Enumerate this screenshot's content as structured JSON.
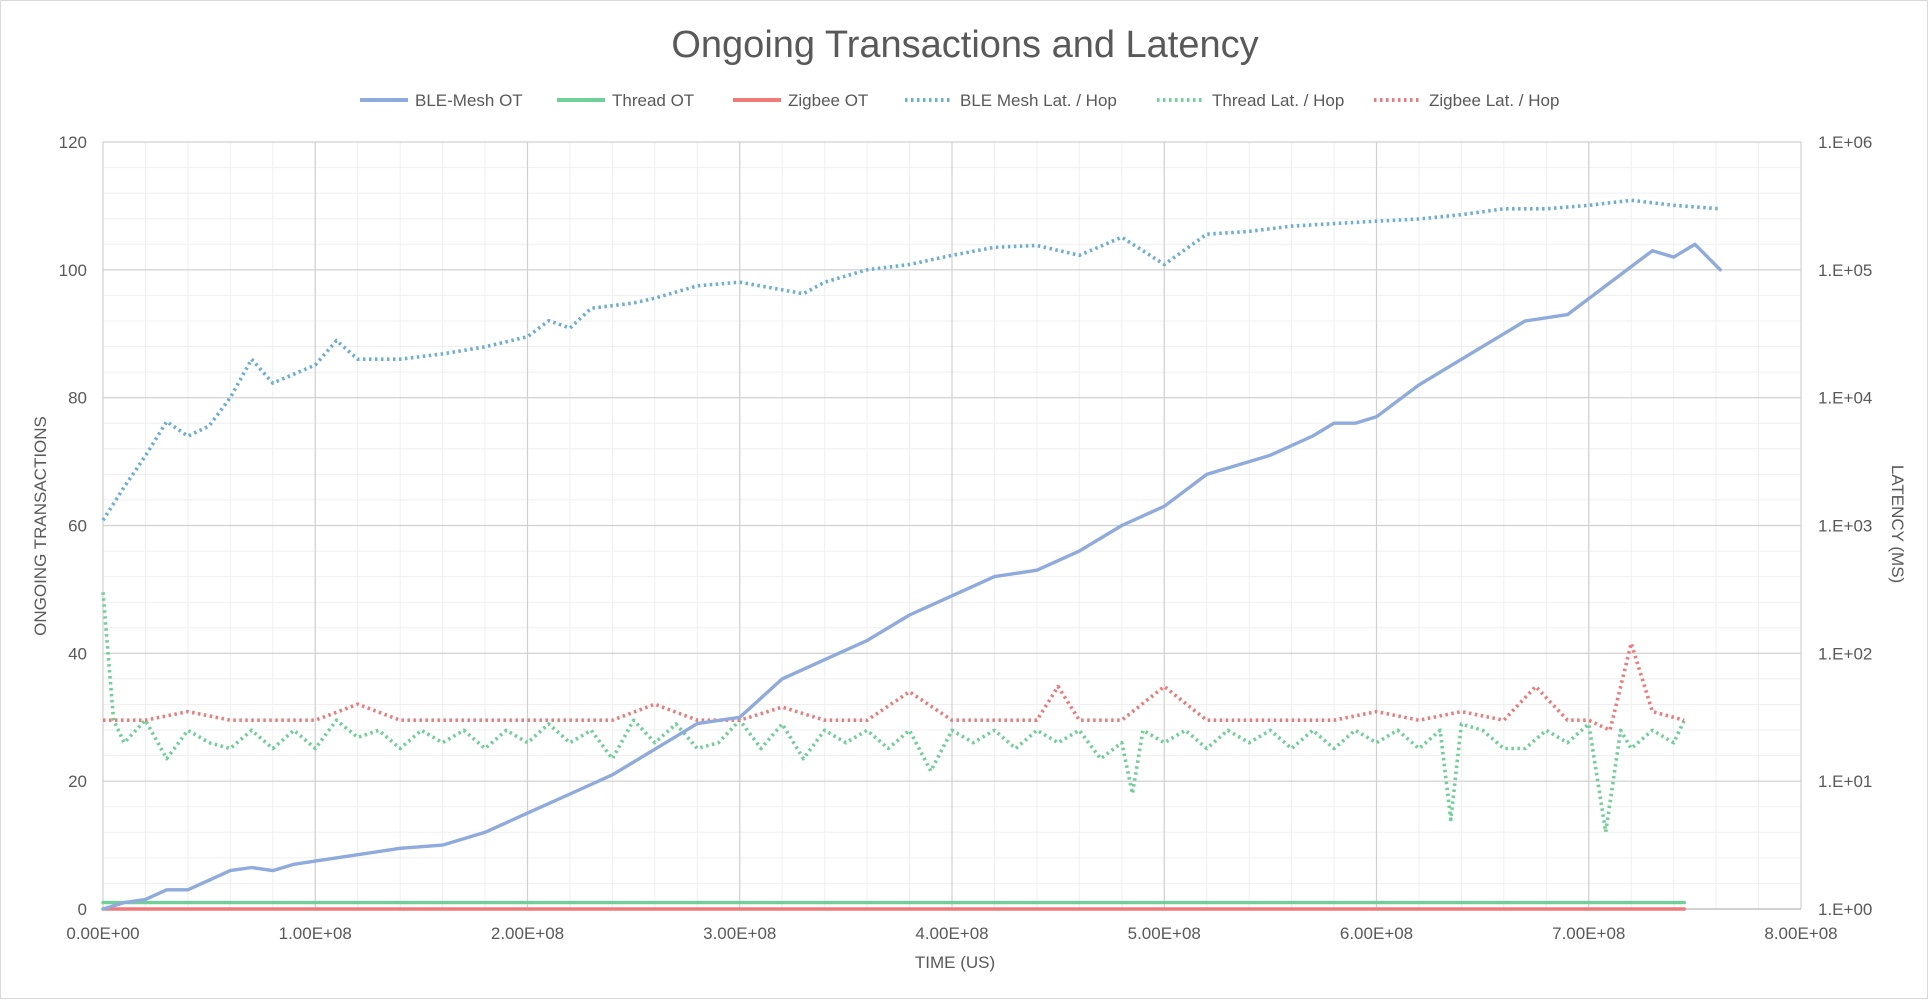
{
  "chart_data": {
    "type": "line",
    "title": "Ongoing Transactions and Latency",
    "xlabel": "TIME (US)",
    "ylabel": "ONGOING TRANSACTIONS",
    "y2label": "LATENCY (MS)",
    "xlim": [
      0,
      800000000
    ],
    "ylim": [
      0,
      120
    ],
    "y2lim": [
      1,
      1000000
    ],
    "y2scale": "log",
    "grid": true,
    "legend_position": "top",
    "x_ticks": [
      "0.00E+00",
      "1.00E+08",
      "2.00E+08",
      "3.00E+08",
      "4.00E+08",
      "5.00E+08",
      "6.00E+08",
      "7.00E+08",
      "8.00E+08"
    ],
    "y_ticks": [
      "0",
      "20",
      "40",
      "60",
      "80",
      "100",
      "120"
    ],
    "y2_ticks": [
      "1.E+00",
      "1.E+01",
      "1.E+02",
      "1.E+03",
      "1.E+04",
      "1.E+05",
      "1.E+06"
    ],
    "series": [
      {
        "name": "BLE-Mesh OT",
        "axis": "left",
        "style": "solid",
        "color": "#8faadc",
        "points": [
          [
            0,
            0
          ],
          [
            10000000,
            1
          ],
          [
            20000000,
            1.5
          ],
          [
            30000000,
            3
          ],
          [
            40000000,
            3
          ],
          [
            50000000,
            4.5
          ],
          [
            60000000,
            6
          ],
          [
            70000000,
            6.5
          ],
          [
            80000000,
            6
          ],
          [
            90000000,
            7
          ],
          [
            100000000,
            7.5
          ],
          [
            120000000,
            8.5
          ],
          [
            140000000,
            9.5
          ],
          [
            160000000,
            10
          ],
          [
            180000000,
            12
          ],
          [
            200000000,
            15
          ],
          [
            220000000,
            18
          ],
          [
            240000000,
            21
          ],
          [
            260000000,
            25
          ],
          [
            270000000,
            27
          ],
          [
            280000000,
            29
          ],
          [
            300000000,
            30
          ],
          [
            320000000,
            36
          ],
          [
            340000000,
            39
          ],
          [
            360000000,
            42
          ],
          [
            380000000,
            46
          ],
          [
            400000000,
            49
          ],
          [
            420000000,
            52
          ],
          [
            440000000,
            53
          ],
          [
            460000000,
            56
          ],
          [
            480000000,
            60
          ],
          [
            500000000,
            63
          ],
          [
            520000000,
            68
          ],
          [
            540000000,
            70
          ],
          [
            550000000,
            71
          ],
          [
            570000000,
            74
          ],
          [
            580000000,
            76
          ],
          [
            590000000,
            76
          ],
          [
            600000000,
            77
          ],
          [
            620000000,
            82
          ],
          [
            640000000,
            86
          ],
          [
            660000000,
            90
          ],
          [
            670000000,
            92
          ],
          [
            690000000,
            93
          ],
          [
            710000000,
            98
          ],
          [
            730000000,
            103
          ],
          [
            740000000,
            102
          ],
          [
            750000000,
            104
          ],
          [
            762000000,
            100
          ]
        ]
      },
      {
        "name": "Thread OT",
        "axis": "left",
        "style": "solid",
        "color": "#6fd098",
        "points": [
          [
            0,
            1
          ],
          [
            745000000,
            1
          ]
        ]
      },
      {
        "name": "Zigbee OT",
        "axis": "left",
        "style": "solid",
        "color": "#f07a7a",
        "points": [
          [
            0,
            0
          ],
          [
            745000000,
            0
          ]
        ]
      },
      {
        "name": "BLE Mesh Lat. / Hop",
        "axis": "right",
        "style": "dotted",
        "color": "#6baed6",
        "points": [
          [
            0,
            1100
          ],
          [
            10000000,
            2000
          ],
          [
            20000000,
            3500
          ],
          [
            30000000,
            6500
          ],
          [
            40000000,
            5000
          ],
          [
            50000000,
            6000
          ],
          [
            60000000,
            10000
          ],
          [
            70000000,
            20000
          ],
          [
            80000000,
            13000
          ],
          [
            100000000,
            18000
          ],
          [
            110000000,
            28000
          ],
          [
            120000000,
            20000
          ],
          [
            140000000,
            20000
          ],
          [
            160000000,
            22000
          ],
          [
            180000000,
            25000
          ],
          [
            200000000,
            30000
          ],
          [
            210000000,
            40000
          ],
          [
            220000000,
            35000
          ],
          [
            230000000,
            50000
          ],
          [
            250000000,
            55000
          ],
          [
            260000000,
            60000
          ],
          [
            280000000,
            75000
          ],
          [
            300000000,
            80000
          ],
          [
            330000000,
            65000
          ],
          [
            340000000,
            80000
          ],
          [
            360000000,
            100000
          ],
          [
            380000000,
            110000
          ],
          [
            400000000,
            130000
          ],
          [
            420000000,
            150000
          ],
          [
            440000000,
            155000
          ],
          [
            460000000,
            130000
          ],
          [
            480000000,
            180000
          ],
          [
            500000000,
            110000
          ],
          [
            520000000,
            190000
          ],
          [
            540000000,
            200000
          ],
          [
            560000000,
            220000
          ],
          [
            580000000,
            230000
          ],
          [
            600000000,
            240000
          ],
          [
            620000000,
            250000
          ],
          [
            640000000,
            270000
          ],
          [
            660000000,
            300000
          ],
          [
            680000000,
            300000
          ],
          [
            700000000,
            320000
          ],
          [
            720000000,
            350000
          ],
          [
            740000000,
            320000
          ],
          [
            762000000,
            300000
          ]
        ]
      },
      {
        "name": "Thread Lat. / Hop",
        "axis": "right",
        "style": "dotted",
        "color": "#6fd098",
        "points": [
          [
            0,
            300
          ],
          [
            5000000,
            30
          ],
          [
            10000000,
            20
          ],
          [
            20000000,
            30
          ],
          [
            30000000,
            15
          ],
          [
            40000000,
            25
          ],
          [
            50000000,
            20
          ],
          [
            60000000,
            18
          ],
          [
            70000000,
            25
          ],
          [
            80000000,
            18
          ],
          [
            90000000,
            25
          ],
          [
            100000000,
            18
          ],
          [
            110000000,
            30
          ],
          [
            120000000,
            22
          ],
          [
            130000000,
            25
          ],
          [
            140000000,
            18
          ],
          [
            150000000,
            25
          ],
          [
            160000000,
            20
          ],
          [
            170000000,
            25
          ],
          [
            180000000,
            18
          ],
          [
            190000000,
            25
          ],
          [
            200000000,
            20
          ],
          [
            210000000,
            28
          ],
          [
            220000000,
            20
          ],
          [
            230000000,
            25
          ],
          [
            240000000,
            15
          ],
          [
            250000000,
            30
          ],
          [
            260000000,
            20
          ],
          [
            270000000,
            28
          ],
          [
            280000000,
            18
          ],
          [
            290000000,
            20
          ],
          [
            300000000,
            30
          ],
          [
            310000000,
            18
          ],
          [
            320000000,
            28
          ],
          [
            330000000,
            15
          ],
          [
            340000000,
            25
          ],
          [
            350000000,
            20
          ],
          [
            360000000,
            25
          ],
          [
            370000000,
            18
          ],
          [
            380000000,
            25
          ],
          [
            390000000,
            12
          ],
          [
            400000000,
            25
          ],
          [
            410000000,
            20
          ],
          [
            420000000,
            25
          ],
          [
            430000000,
            18
          ],
          [
            440000000,
            25
          ],
          [
            450000000,
            20
          ],
          [
            460000000,
            25
          ],
          [
            470000000,
            15
          ],
          [
            480000000,
            20
          ],
          [
            485000000,
            8
          ],
          [
            490000000,
            25
          ],
          [
            500000000,
            20
          ],
          [
            510000000,
            25
          ],
          [
            520000000,
            18
          ],
          [
            530000000,
            25
          ],
          [
            540000000,
            20
          ],
          [
            550000000,
            25
          ],
          [
            560000000,
            18
          ],
          [
            570000000,
            25
          ],
          [
            580000000,
            18
          ],
          [
            590000000,
            25
          ],
          [
            600000000,
            20
          ],
          [
            610000000,
            25
          ],
          [
            620000000,
            18
          ],
          [
            630000000,
            25
          ],
          [
            635000000,
            5
          ],
          [
            640000000,
            28
          ],
          [
            650000000,
            25
          ],
          [
            660000000,
            18
          ],
          [
            670000000,
            18
          ],
          [
            680000000,
            25
          ],
          [
            690000000,
            20
          ],
          [
            700000000,
            28
          ],
          [
            708000000,
            4
          ],
          [
            715000000,
            25
          ],
          [
            720000000,
            18
          ],
          [
            730000000,
            25
          ],
          [
            740000000,
            20
          ],
          [
            745000000,
            30
          ]
        ]
      },
      {
        "name": "Zigbee Lat. / Hop",
        "axis": "right",
        "style": "dotted",
        "color": "#f07a7a",
        "points": [
          [
            0,
            30
          ],
          [
            20000000,
            30
          ],
          [
            40000000,
            35
          ],
          [
            60000000,
            30
          ],
          [
            80000000,
            30
          ],
          [
            100000000,
            30
          ],
          [
            120000000,
            40
          ],
          [
            140000000,
            30
          ],
          [
            160000000,
            30
          ],
          [
            180000000,
            30
          ],
          [
            200000000,
            30
          ],
          [
            220000000,
            30
          ],
          [
            240000000,
            30
          ],
          [
            260000000,
            40
          ],
          [
            280000000,
            30
          ],
          [
            300000000,
            30
          ],
          [
            320000000,
            38
          ],
          [
            340000000,
            30
          ],
          [
            360000000,
            30
          ],
          [
            380000000,
            50
          ],
          [
            400000000,
            30
          ],
          [
            420000000,
            30
          ],
          [
            440000000,
            30
          ],
          [
            450000000,
            55
          ],
          [
            460000000,
            30
          ],
          [
            480000000,
            30
          ],
          [
            500000000,
            55
          ],
          [
            520000000,
            30
          ],
          [
            540000000,
            30
          ],
          [
            560000000,
            30
          ],
          [
            580000000,
            30
          ],
          [
            600000000,
            35
          ],
          [
            620000000,
            30
          ],
          [
            640000000,
            35
          ],
          [
            660000000,
            30
          ],
          [
            675000000,
            55
          ],
          [
            690000000,
            30
          ],
          [
            700000000,
            30
          ],
          [
            710000000,
            25
          ],
          [
            720000000,
            120
          ],
          [
            730000000,
            35
          ],
          [
            745000000,
            30
          ]
        ]
      }
    ]
  }
}
